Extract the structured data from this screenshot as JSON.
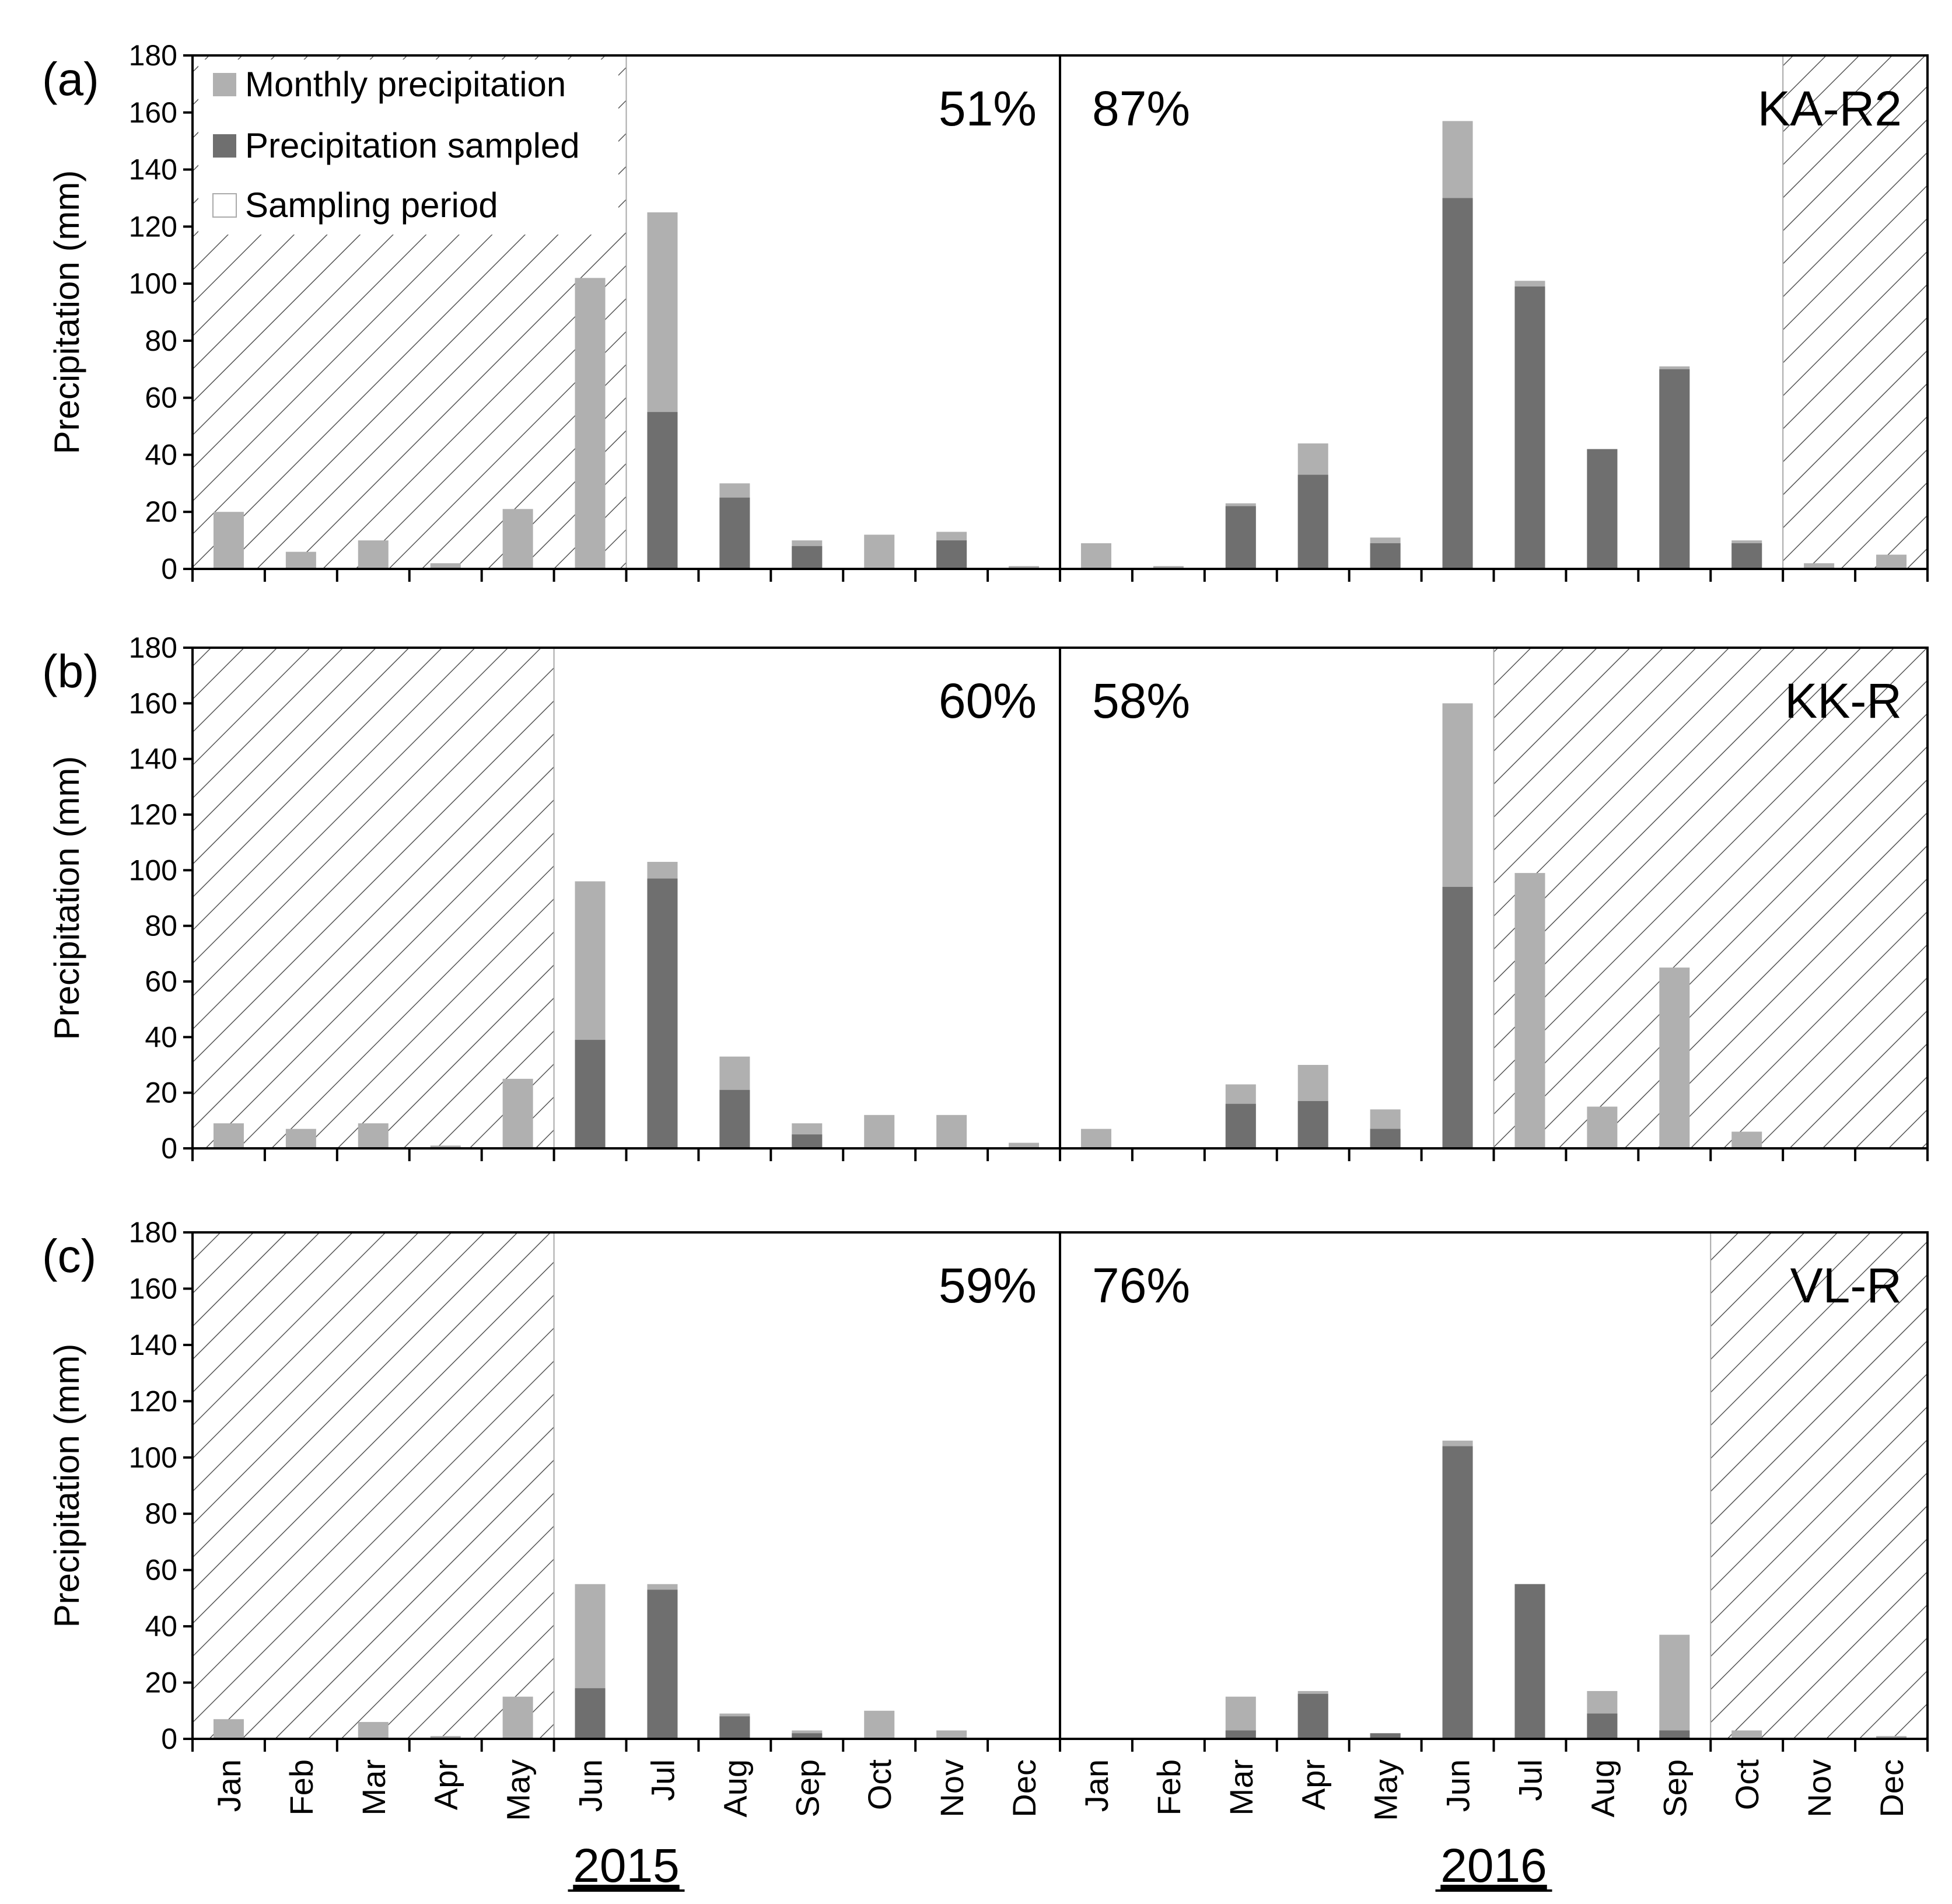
{
  "chart_data": [
    {
      "type": "bar",
      "panel_label": "(a)",
      "site": "KA-R2",
      "ylabel": "Precipitation (mm)",
      "ylim": [
        0,
        180
      ],
      "yticks": [
        "0",
        "20",
        "40",
        "60",
        "80",
        "100",
        "120",
        "140",
        "160",
        "180"
      ],
      "pct_2015": "51%",
      "pct_2016": "87%",
      "monthly_precipitation": [
        20,
        6,
        10,
        2,
        21,
        102,
        125,
        30,
        10,
        12,
        13,
        1,
        9,
        1,
        23,
        44,
        11,
        157,
        101,
        42,
        71,
        10,
        2,
        5
      ],
      "precipitation_sampled": [
        0,
        0,
        0,
        0,
        0,
        0,
        55,
        25,
        8,
        0,
        10,
        0,
        0,
        0,
        22,
        33,
        9,
        130,
        99,
        42,
        70,
        9,
        0,
        0
      ],
      "non_sampled_months": [
        [
          0,
          5
        ],
        [
          22,
          23
        ]
      ],
      "show_legend": true
    },
    {
      "type": "bar",
      "panel_label": "(b)",
      "site": "KK-R",
      "ylabel": "Precipitation (mm)",
      "ylim": [
        0,
        180
      ],
      "yticks": [
        "0",
        "20",
        "40",
        "60",
        "80",
        "100",
        "120",
        "140",
        "160",
        "180"
      ],
      "pct_2015": "60%",
      "pct_2016": "58%",
      "monthly_precipitation": [
        9,
        7,
        9,
        1,
        25,
        96,
        103,
        33,
        9,
        12,
        12,
        2,
        7,
        0,
        23,
        30,
        14,
        160,
        99,
        15,
        65,
        6,
        0,
        0
      ],
      "precipitation_sampled": [
        0,
        0,
        0,
        0,
        0,
        39,
        97,
        21,
        5,
        0,
        0,
        0,
        0,
        0,
        16,
        17,
        7,
        94,
        0,
        0,
        0,
        0,
        0,
        0
      ],
      "non_sampled_months": [
        [
          0,
          4
        ],
        [
          18,
          23
        ]
      ],
      "show_legend": false
    },
    {
      "type": "bar",
      "panel_label": "(c)",
      "site": "VL-R",
      "ylabel": "Precipitation (mm)",
      "ylim": [
        0,
        180
      ],
      "yticks": [
        "0",
        "20",
        "40",
        "60",
        "80",
        "100",
        "120",
        "140",
        "160",
        "180"
      ],
      "pct_2015": "59%",
      "pct_2016": "76%",
      "monthly_precipitation": [
        7,
        0,
        6,
        1,
        15,
        55,
        55,
        9,
        3,
        10,
        3,
        0,
        0,
        0,
        15,
        17,
        2,
        106,
        55,
        17,
        37,
        3,
        0,
        1
      ],
      "precipitation_sampled": [
        0,
        0,
        0,
        0,
        0,
        18,
        53,
        8,
        2,
        0,
        0,
        0,
        0,
        0,
        3,
        16,
        2,
        104,
        55,
        9,
        3,
        0,
        0,
        0
      ],
      "non_sampled_months": [
        [
          0,
          4
        ],
        [
          21,
          23
        ]
      ],
      "show_legend": false
    }
  ],
  "months": [
    "Jan",
    "Feb",
    "Mar",
    "Apr",
    "May",
    "Jun",
    "Jul",
    "Aug",
    "Sep",
    "Oct",
    "Nov",
    "Dec"
  ],
  "years": [
    "2015",
    "2016"
  ],
  "legend": {
    "monthly": "Monthly precipitation",
    "sampled": "Precipitation sampled",
    "period": "Sampling period"
  },
  "colors": {
    "monthly": "#b0b0b0",
    "sampled": "#6f6f6f",
    "hatch": "#555555",
    "axis": "#000000"
  }
}
